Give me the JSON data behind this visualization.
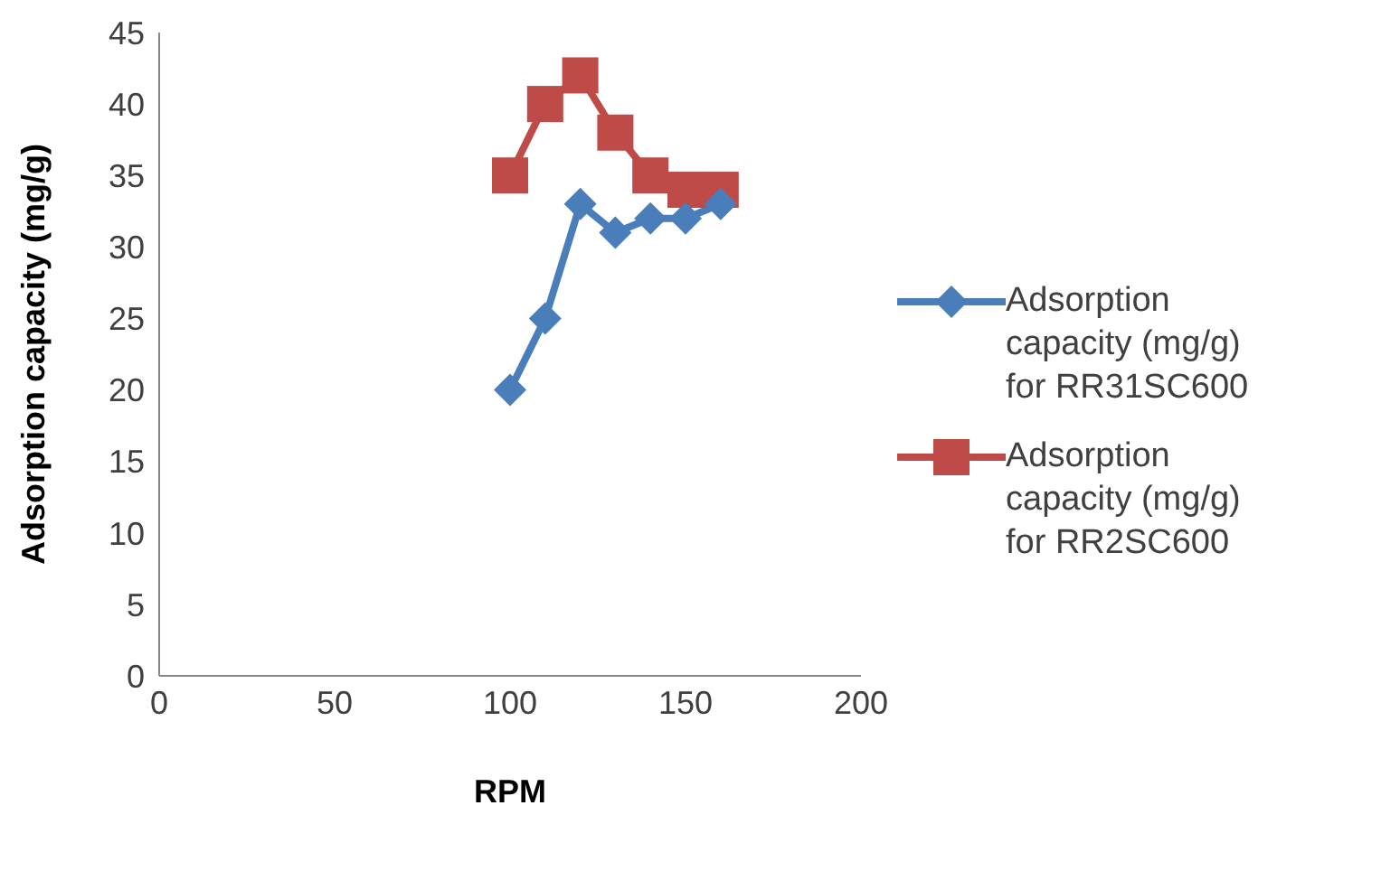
{
  "chart_data": {
    "type": "line",
    "xlabel": "RPM",
    "ylabel": "Adsorption capacity (mg/g)",
    "x": [
      100,
      110,
      120,
      130,
      140,
      150,
      160
    ],
    "series": [
      {
        "name": "Adsorption capacity (mg/g) for RR31SC600",
        "color": "#4a7ebb",
        "marker": "diamond",
        "values": [
          20,
          25,
          33,
          31,
          32,
          32,
          33
        ]
      },
      {
        "name": "Adsorption capacity (mg/g) for RR2SC600",
        "color": "#be4b48",
        "marker": "square",
        "values": [
          35,
          40,
          42,
          38,
          35,
          34,
          34
        ]
      }
    ],
    "xlim": [
      0,
      200
    ],
    "xticks": [
      0,
      50,
      100,
      150,
      200
    ],
    "ylim": [
      0,
      45
    ],
    "yticks": [
      0,
      5,
      10,
      15,
      20,
      25,
      30,
      35,
      40,
      45
    ],
    "grid": false,
    "legend": "right",
    "line_style": "solid"
  }
}
